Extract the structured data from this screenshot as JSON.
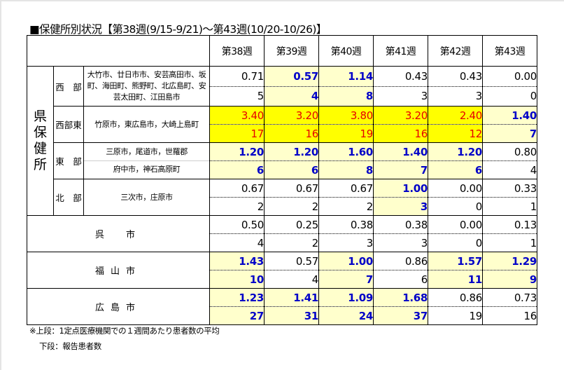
{
  "title": "■保健所別状況【第38週(9/15-9/21)～第43週(10/20-10/26)】",
  "weeks": [
    "第38週",
    "第39週",
    "第40週",
    "第41週",
    "第42週",
    "第43週"
  ],
  "pref_label": "県保健所",
  "pref_chars": [
    "県",
    "保",
    "健",
    "所"
  ],
  "rows": [
    {
      "district": "西　部",
      "areas": [
        "大竹市、廿日市市、安芸高田市、坂町、海田町、熊野町、北広島町、安芸太田町、江田島市"
      ],
      "avg": [
        "0.71",
        "0.57",
        "1.14",
        "0.43",
        "0.43",
        "0.00"
      ],
      "count": [
        "5",
        "4",
        "8",
        "3",
        "3",
        "0"
      ],
      "style": [
        "nm",
        "lt",
        "lt",
        "nm",
        "nm",
        "nm"
      ]
    },
    {
      "district": "西部東",
      "areas": [
        "竹原市，東広島市，大崎上島町"
      ],
      "avg": [
        "3.40",
        "3.20",
        "3.80",
        "3.20",
        "2.40",
        "1.40"
      ],
      "count": [
        "17",
        "16",
        "19",
        "16",
        "12",
        "7"
      ],
      "style": [
        "hi",
        "hi",
        "hi",
        "hi",
        "hi",
        "lt"
      ]
    },
    {
      "district": "東　部",
      "areas": [
        "三原市，尾道市，世羅郡",
        "府中市，神石高原町"
      ],
      "avg": [
        "1.20",
        "1.20",
        "1.60",
        "1.40",
        "1.20",
        "0.80"
      ],
      "count": [
        "6",
        "6",
        "8",
        "7",
        "6",
        "4"
      ],
      "style": [
        "lt",
        "lt",
        "lt",
        "lt",
        "lt",
        "nm"
      ]
    },
    {
      "district": "北　部",
      "areas": [
        "三次市，庄原市"
      ],
      "avg": [
        "0.67",
        "0.67",
        "0.67",
        "1.00",
        "0.00",
        "0.33"
      ],
      "count": [
        "2",
        "2",
        "2",
        "3",
        "0",
        "1"
      ],
      "style": [
        "nm",
        "nm",
        "nm",
        "lt",
        "nm",
        "nm"
      ]
    },
    {
      "city": "呉　市",
      "avg": [
        "0.50",
        "0.25",
        "0.38",
        "0.38",
        "0.00",
        "0.13"
      ],
      "count": [
        "4",
        "2",
        "3",
        "3",
        "0",
        "1"
      ],
      "style": [
        "nm",
        "nm",
        "nm",
        "nm",
        "nm",
        "nm"
      ]
    },
    {
      "city": "福山市",
      "avg": [
        "1.43",
        "0.57",
        "1.00",
        "0.86",
        "1.57",
        "1.29"
      ],
      "count": [
        "10",
        "4",
        "7",
        "6",
        "11",
        "9"
      ],
      "style": [
        "lt",
        "nm",
        "lt",
        "nm",
        "lt",
        "lt"
      ]
    },
    {
      "city": "広島市",
      "avg": [
        "1.23",
        "1.41",
        "1.09",
        "1.68",
        "0.86",
        "0.73"
      ],
      "count": [
        "27",
        "31",
        "24",
        "37",
        "19",
        "16"
      ],
      "style": [
        "lt",
        "lt",
        "lt",
        "lt",
        "nm",
        "nm"
      ]
    }
  ],
  "notes": {
    "line1": "※上段：1定点医療機関での１週間あたり患者数の平均",
    "line2": "下段：報告患者数"
  },
  "colors": {
    "light_yellow": "#ffffcc",
    "bright_yellow": "#ffff00",
    "blue_text": "#0000c8",
    "red_text": "#e60000"
  }
}
